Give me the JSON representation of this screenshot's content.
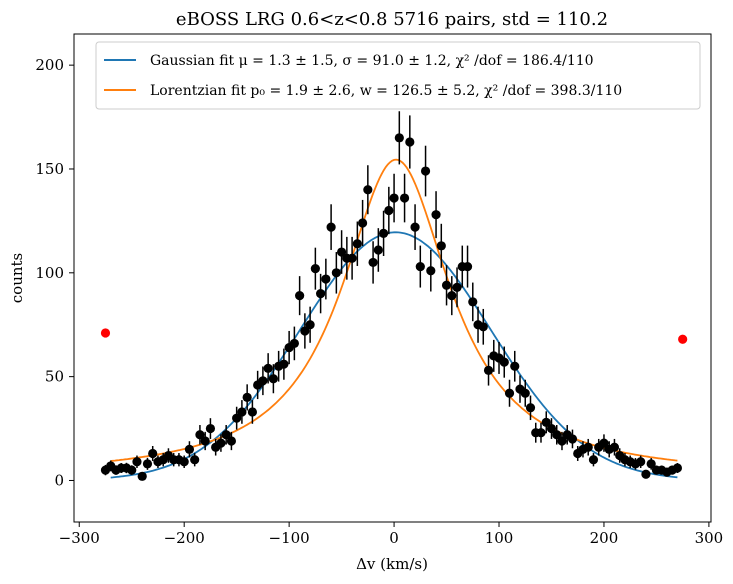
{
  "chart_data": {
    "type": "scatter",
    "title": "eBOSS LRG 0.6<z<0.8 5716 pairs, std = 110.2",
    "xlabel": "Δv (km/s)",
    "ylabel": "counts",
    "xlim": [
      -305,
      302
    ],
    "ylim": [
      -20,
      215
    ],
    "x_ticks": [
      -300,
      -200,
      -100,
      0,
      100,
      200,
      300
    ],
    "y_ticks": [
      0,
      50,
      100,
      150,
      200
    ],
    "grid": false,
    "legend_position": "top",
    "legend": [
      {
        "label": "Gaussian fit μ = 1.3 ± 1.5,  σ = 91.0 ± 1.2, χ² /dof = 186.4/110",
        "color": "#1f77b4"
      },
      {
        "label": "Lorentzian fit p₀ = 1.9 ± 2.6, w = 126.5 ± 5.2, χ² /dof = 398.3/110",
        "color": "#ff7f0e"
      }
    ],
    "series": [
      {
        "kind": "errorbar",
        "color": "#000000",
        "points": [
          [
            -275,
            5,
            2.5
          ],
          [
            -270,
            7,
            2.6
          ],
          [
            -265,
            5,
            2.3
          ],
          [
            -260,
            6,
            2.4
          ],
          [
            -255,
            6,
            2.5
          ],
          [
            -250,
            5,
            2.3
          ],
          [
            -245,
            9,
            3
          ],
          [
            -240,
            2,
            1.5
          ],
          [
            -235,
            8,
            2.9
          ],
          [
            -230,
            13,
            3.6
          ],
          [
            -225,
            9,
            3
          ],
          [
            -220,
            10,
            3.2
          ],
          [
            -215,
            12,
            3.5
          ],
          [
            -210,
            10,
            3.2
          ],
          [
            -205,
            10,
            3.2
          ],
          [
            -200,
            9,
            3
          ],
          [
            -195,
            15,
            3.9
          ],
          [
            -190,
            10,
            3.2
          ],
          [
            -185,
            22,
            4.7
          ],
          [
            -180,
            19,
            4.4
          ],
          [
            -175,
            25,
            5
          ],
          [
            -170,
            16,
            4
          ],
          [
            -165,
            18,
            4.2
          ],
          [
            -160,
            22,
            4.7
          ],
          [
            -155,
            19,
            4.4
          ],
          [
            -150,
            30,
            5.5
          ],
          [
            -145,
            33,
            5.7
          ],
          [
            -140,
            40,
            6.3
          ],
          [
            -135,
            33,
            5.7
          ],
          [
            -130,
            46,
            6.8
          ],
          [
            -125,
            48,
            6.9
          ],
          [
            -120,
            54,
            7.3
          ],
          [
            -115,
            49,
            7
          ],
          [
            -110,
            55,
            7.4
          ],
          [
            -105,
            56,
            7.5
          ],
          [
            -100,
            64,
            8
          ],
          [
            -95,
            66,
            8.1
          ],
          [
            -90,
            89,
            9.4
          ],
          [
            -85,
            72,
            8.5
          ],
          [
            -80,
            75,
            8.7
          ],
          [
            -75,
            102,
            10.1
          ],
          [
            -70,
            90,
            9.5
          ],
          [
            -65,
            97,
            9.8
          ],
          [
            -60,
            122,
            11
          ],
          [
            -55,
            100,
            10
          ],
          [
            -50,
            110,
            10.5
          ],
          [
            -45,
            107,
            10.3
          ],
          [
            -40,
            107,
            10.3
          ],
          [
            -35,
            114,
            10.7
          ],
          [
            -30,
            124,
            11.1
          ],
          [
            -25,
            140,
            11.8
          ],
          [
            -20,
            105,
            10.2
          ],
          [
            -15,
            111,
            10.5
          ],
          [
            -10,
            119,
            10.9
          ],
          [
            -5,
            130,
            11.4
          ],
          [
            0,
            136,
            11.7
          ],
          [
            5,
            165,
            12.8
          ],
          [
            10,
            136,
            11.7
          ],
          [
            15,
            163,
            12.8
          ],
          [
            20,
            122,
            11
          ],
          [
            25,
            103,
            10.1
          ],
          [
            30,
            149,
            12.2
          ],
          [
            35,
            101,
            10
          ],
          [
            40,
            128,
            11.3
          ],
          [
            45,
            113,
            10.6
          ],
          [
            50,
            94,
            9.7
          ],
          [
            55,
            89,
            9.4
          ],
          [
            60,
            93,
            9.6
          ],
          [
            65,
            103,
            10.1
          ],
          [
            70,
            103,
            10.1
          ],
          [
            75,
            86,
            9.3
          ],
          [
            80,
            75,
            8.7
          ],
          [
            85,
            74,
            8.6
          ],
          [
            90,
            53,
            7.3
          ],
          [
            95,
            60,
            7.7
          ],
          [
            100,
            59,
            7.7
          ],
          [
            105,
            57,
            7.5
          ],
          [
            110,
            42,
            6.5
          ],
          [
            115,
            55,
            7.4
          ],
          [
            120,
            44,
            6.6
          ],
          [
            125,
            42,
            6.5
          ],
          [
            130,
            35,
            5.9
          ],
          [
            135,
            23,
            4.8
          ],
          [
            140,
            23,
            4.8
          ],
          [
            145,
            28,
            5.3
          ],
          [
            150,
            25,
            5
          ],
          [
            155,
            22,
            4.7
          ],
          [
            160,
            19,
            4.4
          ],
          [
            165,
            22,
            4.7
          ],
          [
            170,
            20,
            4.5
          ],
          [
            175,
            13,
            3.6
          ],
          [
            180,
            15,
            3.9
          ],
          [
            185,
            16,
            4
          ],
          [
            190,
            10,
            3.2
          ],
          [
            195,
            16,
            4
          ],
          [
            200,
            18,
            4.2
          ],
          [
            205,
            15,
            3.9
          ],
          [
            210,
            16,
            4
          ],
          [
            215,
            12,
            3.5
          ],
          [
            220,
            10,
            3.2
          ],
          [
            225,
            9,
            3
          ],
          [
            230,
            8,
            2.8
          ],
          [
            235,
            9,
            3
          ],
          [
            240,
            3,
            1.7
          ],
          [
            245,
            8,
            2.8
          ],
          [
            250,
            5,
            2.2
          ],
          [
            255,
            5,
            2.2
          ],
          [
            260,
            4,
            2
          ],
          [
            265,
            5,
            2.2
          ],
          [
            270,
            6,
            2.4
          ]
        ]
      },
      {
        "kind": "points",
        "color": "#ff0000",
        "points": [
          [
            -275,
            71
          ],
          [
            275,
            68
          ]
        ]
      },
      {
        "kind": "curve",
        "model": "gaussian",
        "color": "#1f77b4",
        "mu": 1.3,
        "sigma": 91.0,
        "amplitude": 119.5,
        "x_range": [
          -270,
          270
        ]
      },
      {
        "kind": "curve",
        "model": "lorentzian",
        "color": "#ff7f0e",
        "p0": 1.9,
        "w": 126.5,
        "amplitude": 153,
        "offset": 1.5,
        "x_range": [
          -270,
          270
        ]
      }
    ]
  }
}
